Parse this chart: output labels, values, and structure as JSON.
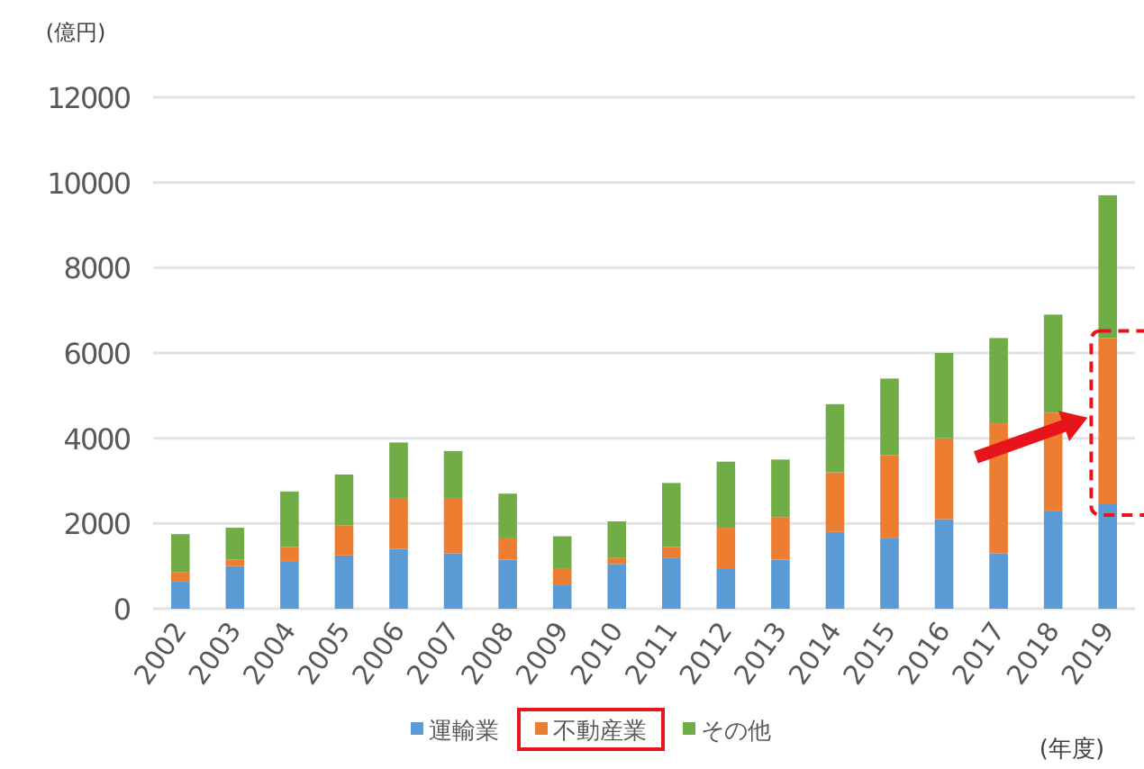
{
  "chart_data": {
    "type": "bar",
    "stacked": true,
    "ylabel": "(億円)",
    "xlabel": "(年度)",
    "categories": [
      "2002",
      "2003",
      "2004",
      "2005",
      "2006",
      "2007",
      "2008",
      "2009",
      "2010",
      "2011",
      "2012",
      "2013",
      "2014",
      "2015",
      "2016",
      "2017",
      "2018",
      "2019"
    ],
    "series": [
      {
        "name": "運輸業",
        "color": "#5b9bd5",
        "values": [
          650,
          1000,
          1100,
          1250,
          1400,
          1300,
          1150,
          550,
          1050,
          1200,
          950,
          1150,
          1800,
          1650,
          2100,
          1300,
          2300,
          2450
        ]
      },
      {
        "name": "不動産業",
        "color": "#ed7d31",
        "values": [
          200,
          150,
          350,
          700,
          1200,
          1300,
          500,
          400,
          150,
          250,
          950,
          1000,
          1400,
          1950,
          1900,
          3050,
          2300,
          3900
        ]
      },
      {
        "name": "その他",
        "color": "#70ad47",
        "values": [
          900,
          750,
          1300,
          1200,
          1300,
          1100,
          1050,
          750,
          850,
          1500,
          1550,
          1350,
          1600,
          1800,
          2000,
          2000,
          2300,
          3350
        ]
      }
    ],
    "ylim": [
      0,
      12000
    ],
    "yticks": [
      0,
      2000,
      4000,
      6000,
      8000,
      10000,
      12000
    ],
    "grid": "y",
    "legend": "bottom"
  }
}
